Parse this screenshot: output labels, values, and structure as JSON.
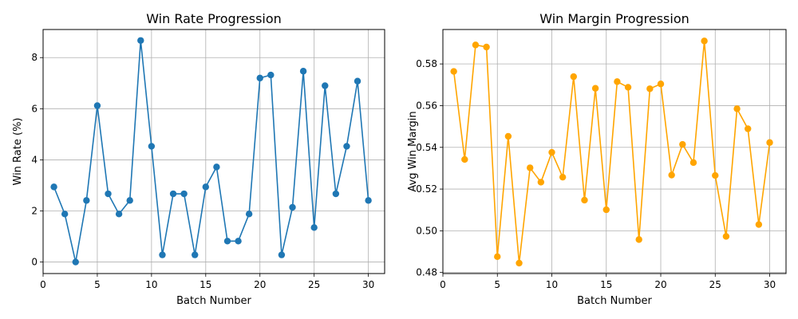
{
  "chart_data": [
    {
      "type": "line",
      "title": "Win Rate Progression",
      "xlabel": "Batch Number",
      "ylabel": "Win Rate (%)",
      "xlim": [
        0,
        31.5
      ],
      "ylim": [
        -0.45,
        9.1
      ],
      "xticks": [
        0,
        5,
        10,
        15,
        20,
        25,
        30
      ],
      "yticks": [
        0,
        2,
        4,
        6,
        8
      ],
      "grid": true,
      "color": "#1f77b4",
      "marker": "circle",
      "x": [
        1,
        2,
        3,
        4,
        5,
        6,
        7,
        8,
        9,
        10,
        11,
        12,
        13,
        14,
        15,
        16,
        17,
        18,
        19,
        20,
        21,
        22,
        23,
        24,
        25,
        26,
        27,
        28,
        29,
        30
      ],
      "series": [
        {
          "values": [
            2.94,
            1.88,
            0.0,
            2.41,
            6.12,
            2.67,
            1.88,
            2.41,
            8.67,
            4.53,
            0.28,
            2.67,
            2.67,
            0.28,
            2.94,
            3.72,
            0.82,
            0.82,
            1.88,
            7.2,
            7.32,
            0.28,
            2.14,
            7.47,
            1.35,
            6.9,
            2.67,
            4.53,
            7.08,
            2.41
          ]
        }
      ]
    },
    {
      "type": "line",
      "title": "Win Margin Progression",
      "xlabel": "Batch Number",
      "ylabel": "Avg Win Margin",
      "xlim": [
        0,
        31.5
      ],
      "ylim": [
        0.4795,
        0.5965
      ],
      "xticks": [
        0,
        5,
        10,
        15,
        20,
        25,
        30
      ],
      "yticks": [
        "0.48",
        "0.50",
        "0.52",
        "0.54",
        "0.56",
        "0.58"
      ],
      "grid": true,
      "color": "#ffa500",
      "marker": "circle",
      "x": [
        1,
        2,
        3,
        4,
        5,
        6,
        7,
        8,
        9,
        10,
        11,
        12,
        13,
        14,
        15,
        16,
        17,
        18,
        19,
        20,
        21,
        22,
        23,
        24,
        25,
        26,
        27,
        28,
        29,
        30
      ],
      "series": [
        {
          "values": [
            0.5764,
            0.5342,
            0.5891,
            0.5881,
            0.4876,
            0.5453,
            0.4845,
            0.5302,
            0.5233,
            0.5376,
            0.5257,
            0.5739,
            0.5147,
            0.5683,
            0.5101,
            0.5715,
            0.5688,
            0.4958,
            0.5681,
            0.5704,
            0.5267,
            0.5414,
            0.5327,
            0.591,
            0.5265,
            0.4973,
            0.5585,
            0.5489,
            0.503,
            0.5423
          ]
        }
      ]
    }
  ]
}
